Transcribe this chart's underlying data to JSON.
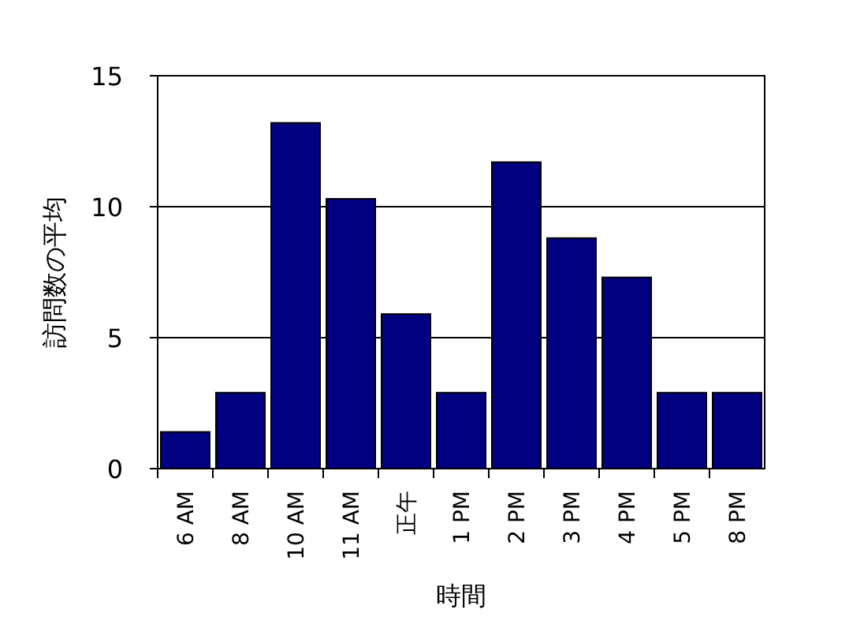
{
  "chart_data": {
    "type": "bar",
    "xlabel": "時間",
    "ylabel": "訪問数の平均",
    "categories": [
      "6 AM",
      "8 AM",
      "10 AM",
      "11 AM",
      "正午",
      "1 PM",
      "2 PM",
      "3 PM",
      "4 PM",
      "5 PM",
      "8 PM"
    ],
    "values": [
      1.4,
      2.9,
      13.2,
      10.3,
      5.9,
      2.9,
      11.7,
      8.8,
      7.3,
      2.9,
      2.9
    ],
    "color": "#000080",
    "ylim": [
      0,
      15
    ],
    "yticks": [
      0,
      5,
      10,
      15
    ],
    "grid": "y"
  }
}
